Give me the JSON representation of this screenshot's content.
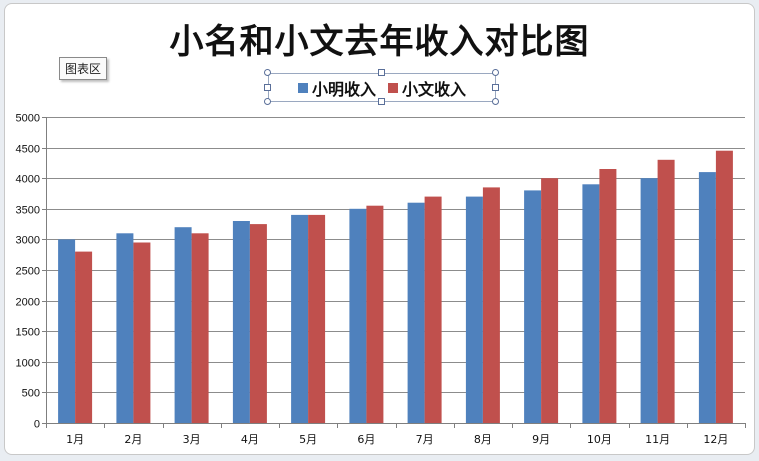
{
  "tooltip": "图表区",
  "chart_data": {
    "type": "bar",
    "title": "小名和小文去年收入对比图",
    "categories": [
      "1月",
      "2月",
      "3月",
      "4月",
      "5月",
      "6月",
      "7月",
      "8月",
      "9月",
      "10月",
      "11月",
      "12月"
    ],
    "series": [
      {
        "name": "小明收入",
        "color": "#4f81bd",
        "values": [
          3000,
          3100,
          3200,
          3300,
          3400,
          3500,
          3600,
          3700,
          3800,
          3900,
          4000,
          4100
        ]
      },
      {
        "name": "小文收入",
        "color": "#c0504d",
        "values": [
          2800,
          2950,
          3100,
          3250,
          3400,
          3550,
          3700,
          3850,
          4000,
          4150,
          4300,
          4450
        ]
      }
    ],
    "yticks": [
      "0",
      "500",
      "1000",
      "1500",
      "2000",
      "2500",
      "3000",
      "3500",
      "4000",
      "4500",
      "5000"
    ],
    "ylim": [
      0,
      5000
    ],
    "grid": true,
    "legend_position": "top"
  }
}
